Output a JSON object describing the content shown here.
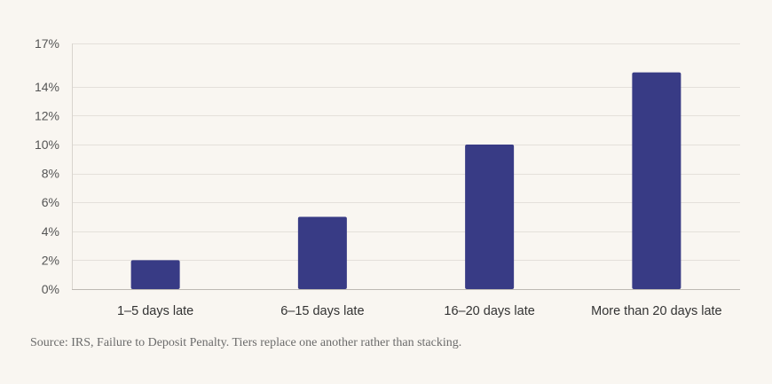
{
  "chart_data": {
    "type": "bar",
    "categories": [
      "1–5 days late",
      "6–15 days late",
      "16–20 days late",
      "More than 20 days late"
    ],
    "values": [
      2,
      5,
      10,
      15
    ],
    "yticks": [
      0,
      2,
      4,
      6,
      8,
      10,
      12,
      14,
      17
    ],
    "ytick_suffix": "%",
    "ylim": [
      0,
      17
    ],
    "grid": true,
    "bar_color": "#383b85",
    "title": "",
    "xlabel": "",
    "ylabel": ""
  },
  "footer": {
    "source": "Source: IRS, Failure to Deposit Penalty. Tiers replace one another rather than stacking."
  }
}
